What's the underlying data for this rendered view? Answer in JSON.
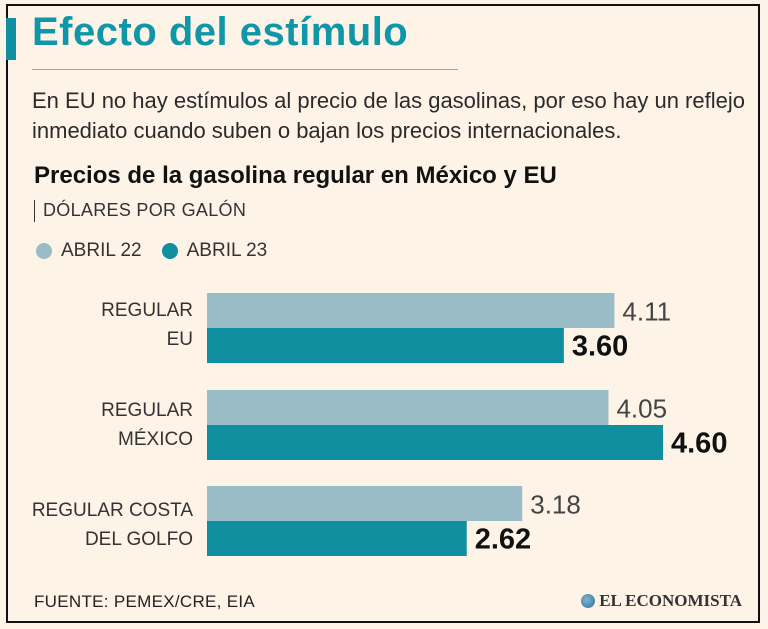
{
  "header": {
    "title": "Efecto del estímulo",
    "subtitle": "En EU no hay estímulos al precio de las gasolinas, por eso hay un reflejo inmediato cuando suben o bajan los precios internacionales."
  },
  "chart_data": {
    "type": "bar",
    "orientation": "horizontal",
    "title": "Precios de la gasolina regular en México y EU",
    "units": "DÓLARES POR GALÓN",
    "categories": [
      [
        "REGULAR",
        "EU"
      ],
      [
        "REGULAR",
        "MÉXICO"
      ],
      [
        "REGULAR COSTA",
        "DEL GOLFO"
      ]
    ],
    "series": [
      {
        "name": "ABRIL 22",
        "values": [
          4.11,
          4.05,
          3.18
        ],
        "labels": [
          "4.11",
          "4.05",
          "3.18"
        ],
        "color": "#99bcc6"
      },
      {
        "name": "ABRIL 23",
        "values": [
          3.6,
          4.6,
          2.62
        ],
        "labels": [
          "3.60",
          "4.60",
          "2.62"
        ],
        "color": "#0f8fa0"
      }
    ],
    "xlim": [
      0,
      4.6
    ],
    "grid": false,
    "legend": "top-left"
  },
  "footer": {
    "source": "FUENTE: PEMEX/CRE, EIA",
    "brand": "EL ECONOMISTA"
  }
}
